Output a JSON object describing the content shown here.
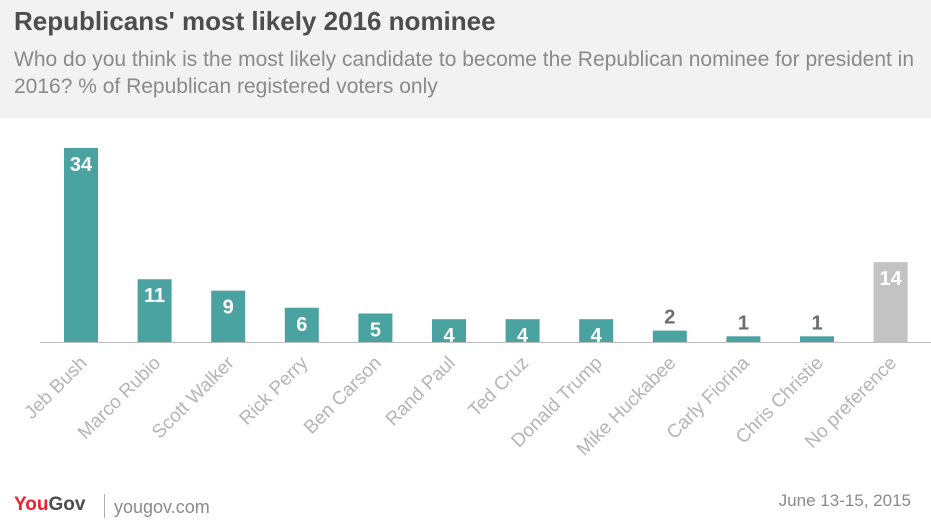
{
  "title": "Republicans' most likely 2016 nominee",
  "subtitle": "Who do you think is the most likely candidate to become the Republican nominee for president in 2016? % of Republican registered voters only",
  "footer": {
    "logo_you": "You",
    "logo_gov": "Gov",
    "site": "yougov.com",
    "date": "June 13-15, 2015"
  },
  "colors": {
    "bar": "#4aa3a1",
    "highlight_bar": "#c3c3c3",
    "label_inside": "#ffffff",
    "label_outside": "#6d6d6d",
    "category_label": "#b5b5b5",
    "baseline": "#bdbdbd"
  },
  "chart_data": {
    "type": "bar",
    "categories": [
      "Jeb Bush",
      "Marco Rubio",
      "Scott Walker",
      "Rick Perry",
      "Ben Carson",
      "Rand Paul",
      "Ted Cruz",
      "Donald Trump",
      "Mike Huckabee",
      "Carly Fiorina",
      "Chris Christie",
      "No preference"
    ],
    "values": [
      34,
      11,
      9,
      6,
      5,
      4,
      4,
      4,
      2,
      1,
      1,
      14
    ],
    "highlight_category": "No preference",
    "xlabel": "",
    "ylabel": "",
    "ylim": [
      0,
      34
    ],
    "grid": false,
    "legend": "none",
    "tick_label_rotation": "-45deg"
  }
}
